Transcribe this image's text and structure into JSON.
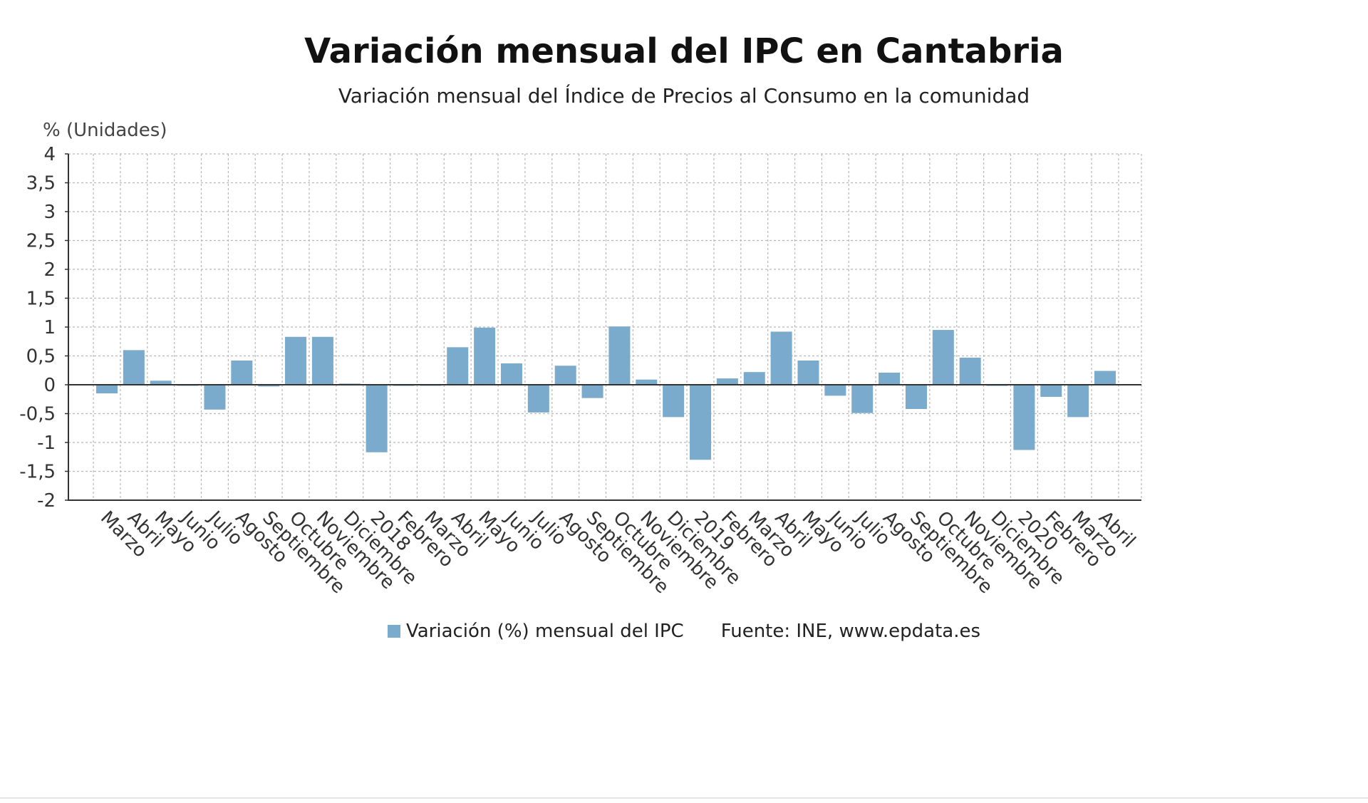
{
  "chart_data": {
    "type": "bar",
    "title": "Variación mensual del IPC en Cantabria",
    "subtitle": "Variación mensual del Índice de Precios al Consumo en la comunidad",
    "ylabel": "% (Unidades)",
    "ylim": [
      -2,
      4
    ],
    "yticks": [
      4,
      3.5,
      3,
      2.5,
      2,
      1.5,
      1,
      0.5,
      0,
      -0.5,
      -1,
      -1.5,
      -2
    ],
    "ytick_labels": [
      "4",
      "3,5",
      "3",
      "2,5",
      "2",
      "1,5",
      "1",
      "0,5",
      "0",
      "-0,5",
      "-1",
      "-1,5",
      "-2"
    ],
    "grid": true,
    "legend_position": "bottom",
    "bar_color": "#7aaacc",
    "categories": [
      "Marzo",
      "Abril",
      "Mayo",
      "Junio",
      "Julio",
      "Agosto",
      "Septiembre",
      "Octubre",
      "Noviembre",
      "Diciembre",
      "2018",
      "Febrero",
      "Marzo",
      "Abril",
      "Mayo",
      "Junio",
      "Julio",
      "Agosto",
      "Septiembre",
      "Octubre",
      "Noviembre",
      "Diciembre",
      "2019",
      "Febrero",
      "Marzo",
      "Abril",
      "Mayo",
      "Junio",
      "Julio",
      "Agosto",
      "Septiembre",
      "Octubre",
      "Noviembre",
      "Diciembre",
      "2020",
      "Febrero",
      "Marzo",
      "Abril"
    ],
    "series": [
      {
        "name": "Variación (%) mensual del IPC",
        "values": [
          -0.15,
          0.6,
          0.07,
          0.0,
          -0.43,
          0.42,
          -0.03,
          0.83,
          0.83,
          0.02,
          -1.17,
          -0.02,
          0.0,
          0.65,
          0.99,
          0.37,
          -0.48,
          0.33,
          -0.23,
          1.01,
          0.09,
          -0.56,
          -1.3,
          0.11,
          0.22,
          0.92,
          0.42,
          -0.19,
          -0.49,
          0.21,
          -0.42,
          0.95,
          0.47,
          -0.02,
          -1.13,
          -0.21,
          -0.56,
          0.24
        ]
      }
    ],
    "source": "Fuente: INE, www.epdata.es"
  }
}
